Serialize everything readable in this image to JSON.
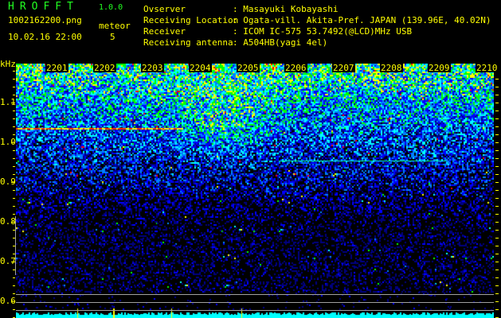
{
  "header": {
    "app_title": "HROFFT",
    "app_version": "1.0.0",
    "filename": "1002162200.png",
    "datetime": "10.02.16 22:00",
    "meteor_label": "meteor",
    "meteor_count": "5"
  },
  "info": [
    {
      "label": "Ovserver",
      "value": ": Masayuki Kobayashi"
    },
    {
      "label": "Receiving Location",
      "value": ": Ogata-vill. Akita-Pref. JAPAN (139.96E, 40.02N)"
    },
    {
      "label": "Receiver",
      "value": ": ICOM IC-575 53.7492(@LCD)MHz USB"
    },
    {
      "label": "Receiving antenna",
      "value": ": A504HB(yagi 4el)"
    }
  ],
  "spectrogram": {
    "y_unit": "kHz",
    "y_ticks": [
      "1.1",
      "1.0",
      "0.9",
      "0.8",
      "0.7",
      "0.6"
    ],
    "time_labels": [
      "2201",
      "2202",
      "2203",
      "2204",
      "2205",
      "2206",
      "2207",
      "2208",
      "2209",
      "2210"
    ],
    "palette": [
      "#000000",
      "#000080",
      "#0000ff",
      "#0080ff",
      "#00ffff",
      "#00ff00",
      "#ffff00",
      "#ff0000"
    ],
    "trace_color": "#ff3000",
    "histogram_color": "#00ffff",
    "meteor_marker_color": "#ffff00"
  }
}
